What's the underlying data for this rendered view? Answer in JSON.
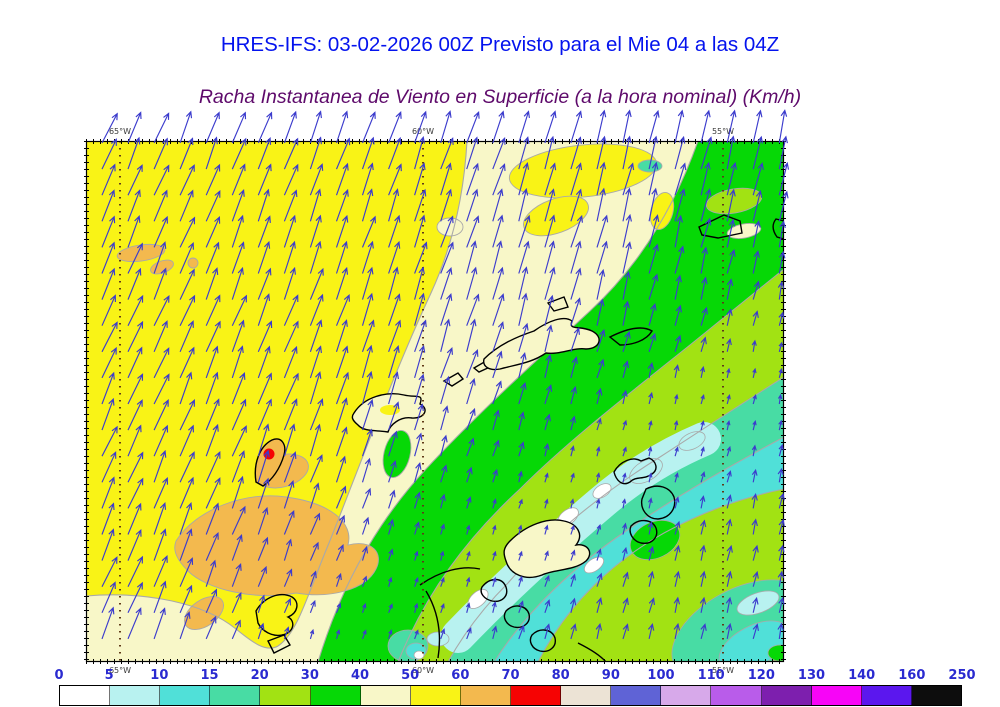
{
  "title": {
    "text": "HRES-IFS: 03-02-2026 00Z Previsto para el Mie 04 a las 04Z",
    "color": "#0413ee"
  },
  "subtitle": {
    "text": "Racha Instantanea de Viento en Superficie (a la hora nominal) (Km/h)",
    "color": "#5e0a6b"
  },
  "map": {
    "lon_labels": [
      "65°W",
      "60°W",
      "55°W"
    ],
    "lon_x": [
      120,
      423,
      723
    ],
    "lon_label_color": "#3a3a3a",
    "graticule_color": "#5f3a18",
    "frame_color": "#000000",
    "coast_color": "#000000",
    "contour_line_color": "#a9a9a9"
  },
  "wind": {
    "arrow_color": "#3c3ccd",
    "direction": "from SSW toward NNE"
  },
  "colorbar": {
    "labels": [
      "0",
      "5",
      "10",
      "15",
      "20",
      "30",
      "40",
      "50",
      "60",
      "70",
      "80",
      "90",
      "100",
      "110",
      "120",
      "130",
      "140",
      "160",
      "250"
    ],
    "label_color": "#2a2ad0",
    "segment_colors": [
      "#ffffff",
      "#b8f2f0",
      "#50e0d8",
      "#48dca4",
      "#a2e213",
      "#06d806",
      "#f8f7c8",
      "#f9f316",
      "#f3b94e",
      "#f60303",
      "#ece3d5",
      "#5f63d6",
      "#d7a9ea",
      "#b95cea",
      "#7d1fae",
      "#f705f7",
      "#5b17ee",
      "#0d0d0d"
    ]
  },
  "palette": {
    "yellow": "#f9f316",
    "cream": "#f8f7c8",
    "green": "#06d806",
    "green_yellow": "#a2e213",
    "teal": "#48dca4",
    "cyan": "#50e0d8",
    "cyan_pale": "#b8f2f0",
    "white": "#ffffff",
    "orange": "#f3b94e",
    "red": "#f60303",
    "contour_gray": "#a9a9a9",
    "coast": "#000000",
    "graticule": "#5f3a18",
    "frame": "#000000"
  }
}
